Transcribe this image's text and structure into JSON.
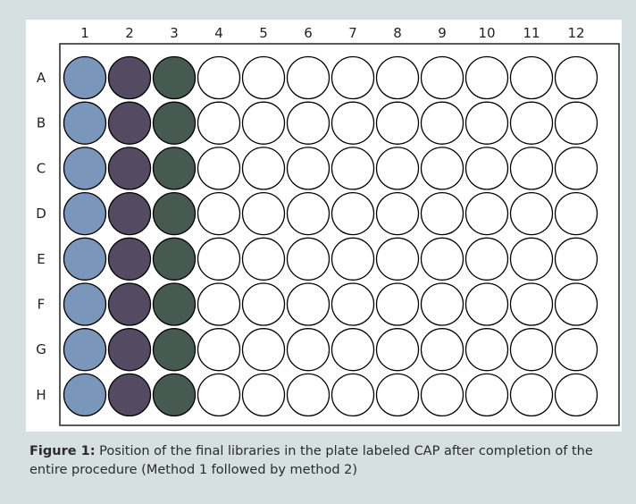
{
  "plate": {
    "columns": [
      "1",
      "2",
      "3",
      "4",
      "5",
      "6",
      "7",
      "8",
      "9",
      "10",
      "11",
      "12"
    ],
    "rows": [
      "A",
      "B",
      "C",
      "D",
      "E",
      "F",
      "G",
      "H"
    ],
    "filled_columns": [
      {
        "column": "1",
        "color": "#7a96ba"
      },
      {
        "column": "2",
        "color": "#544a62"
      },
      {
        "column": "3",
        "color": "#465a52"
      }
    ],
    "empty_well_color": "#ffffff",
    "outline_color": "#000000"
  },
  "caption": {
    "label": "Figure 1:",
    "text": " Position of the final libraries in the plate labeled CAP after completion of the entire procedure (Method 1 followed by method 2)"
  }
}
